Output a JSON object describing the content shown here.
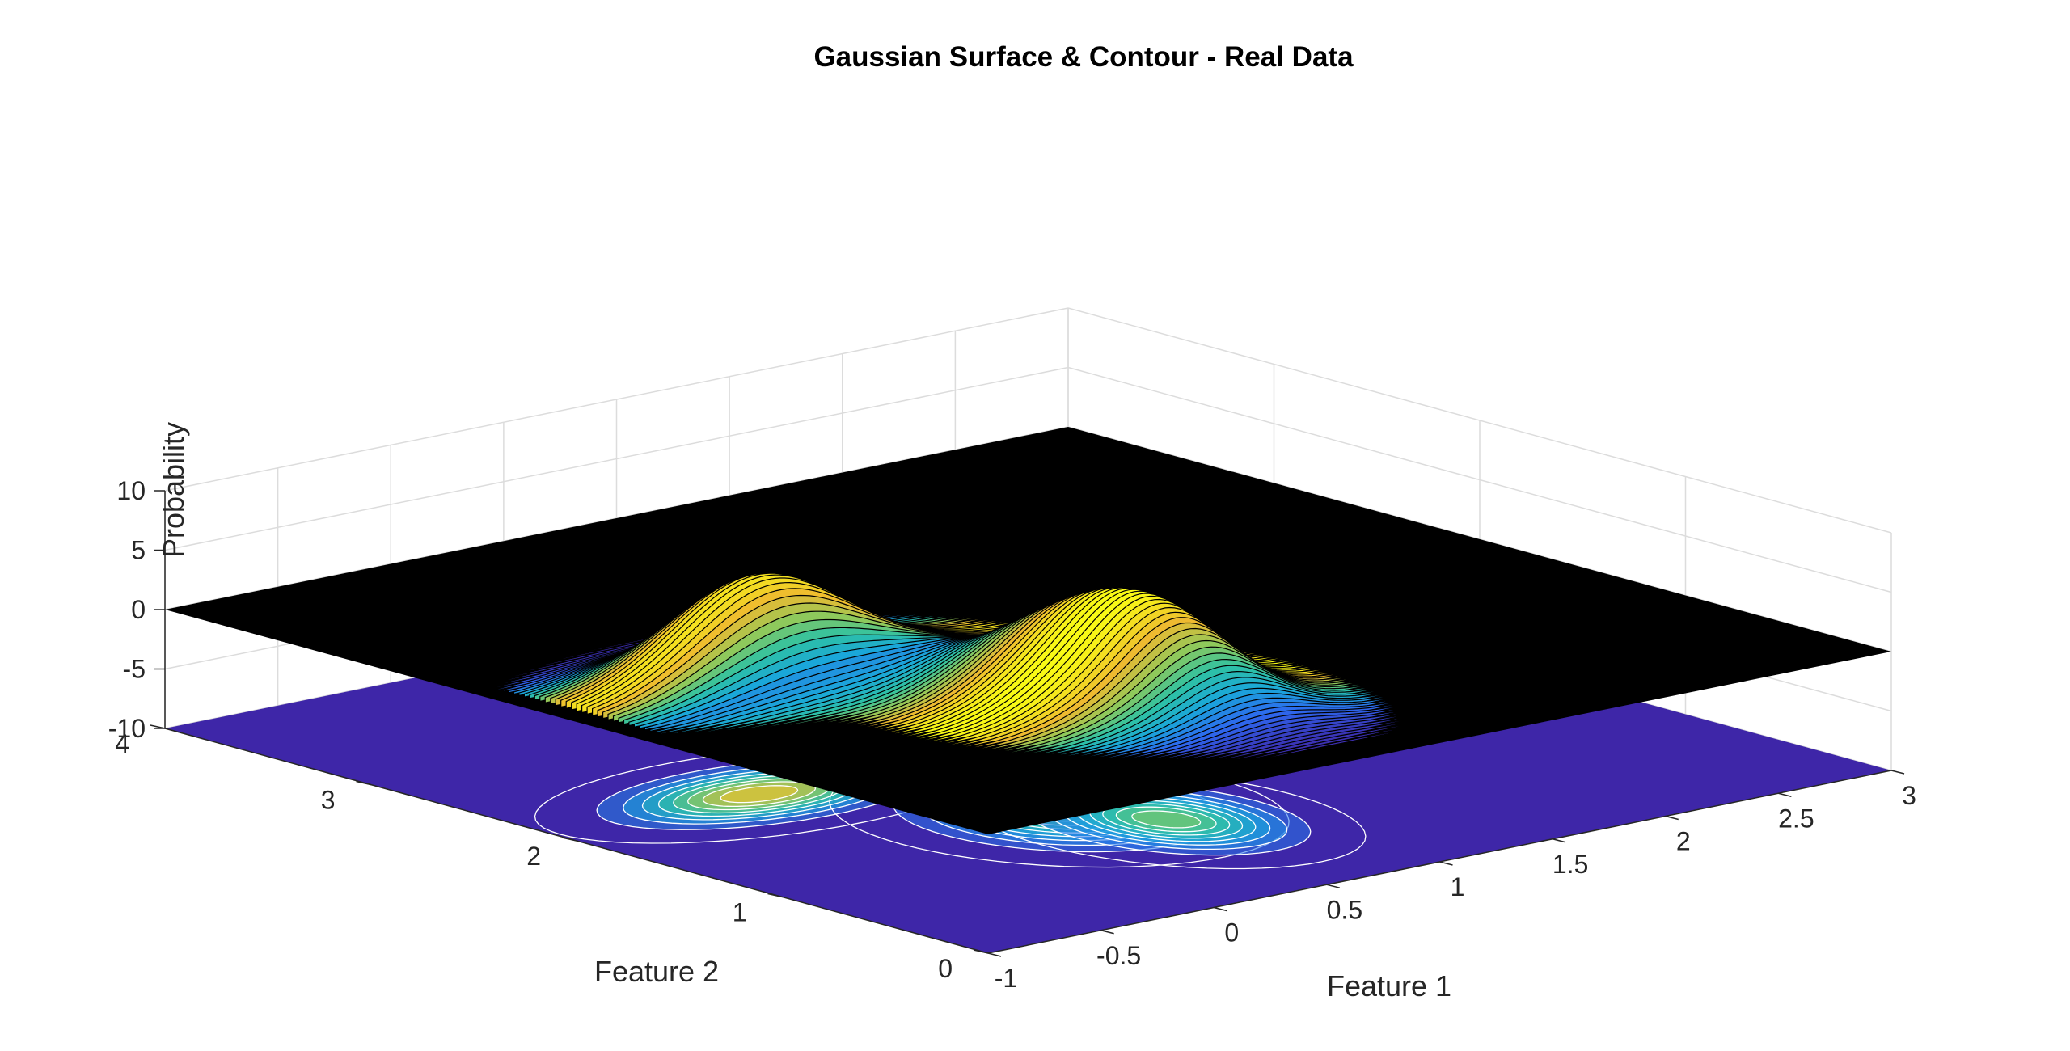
{
  "figure": {
    "title": "Gaussian Surface & Contour - Real Data"
  },
  "chart_data": {
    "type": "surface",
    "title": "Gaussian Surface & Contour - Real Data",
    "xlabel": "Feature 1",
    "ylabel": "Feature 2",
    "zlabel": "Probability",
    "xlim": [
      -1,
      3
    ],
    "ylim": [
      0,
      4
    ],
    "zlim": [
      -10,
      10
    ],
    "x_ticks": [
      "-1",
      "-0.5",
      "0",
      "0.5",
      "1",
      "1.5",
      "2",
      "2.5",
      "3"
    ],
    "x_tick_values": [
      -1,
      -0.5,
      0,
      0.5,
      1,
      1.5,
      2,
      2.5,
      3
    ],
    "y_ticks": [
      "0",
      "1",
      "2",
      "3",
      "4"
    ],
    "y_tick_values": [
      0,
      1,
      2,
      3,
      4
    ],
    "z_ticks": [
      "-10",
      "-5",
      "0",
      "5",
      "10"
    ],
    "z_tick_values": [
      -10,
      -5,
      0,
      5,
      10
    ],
    "grid": true,
    "surface_level": 0,
    "contour_level": -10,
    "components": [
      {
        "mu_x": -0.1,
        "mu_y": 2.1,
        "sx": 0.35,
        "sy": 0.2,
        "peak": 8.4
      },
      {
        "mu_x": 0.5,
        "mu_y": 1.3,
        "sx": 0.28,
        "sy": 0.32,
        "peak": 5.2
      },
      {
        "mu_x": 0.7,
        "mu_y": 1.0,
        "sx": 0.22,
        "sy": 0.3,
        "peak": 5.7
      }
    ],
    "colormap": [
      "#3e26a8",
      "#2d68ef",
      "#1aa7d9",
      "#2fc2a2",
      "#91c95a",
      "#eeba30",
      "#f9fb15"
    ],
    "colors": {
      "surface_base": "#000000",
      "contour_plane": "#3e26a8",
      "contour_lines": "#ffffff",
      "grid": "#dcdcdc"
    }
  }
}
